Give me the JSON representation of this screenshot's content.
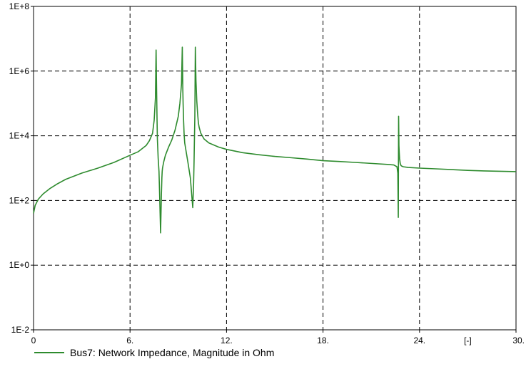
{
  "chart_data": {
    "type": "line",
    "title": "",
    "xlabel": "",
    "ylabel": "",
    "x_unit_label": "[-]",
    "x_ticks": [
      {
        "value": 0,
        "label": "0"
      },
      {
        "value": 6,
        "label": "6."
      },
      {
        "value": 12,
        "label": "12."
      },
      {
        "value": 18,
        "label": "18."
      },
      {
        "value": 24,
        "label": "24."
      },
      {
        "value": 30,
        "label": "30."
      }
    ],
    "y_ticks": [
      {
        "value": 0.01,
        "label": "1E-2"
      },
      {
        "value": 1,
        "label": "1E+0"
      },
      {
        "value": 100,
        "label": "1E+2"
      },
      {
        "value": 10000,
        "label": "1E+4"
      },
      {
        "value": 1000000,
        "label": "1E+6"
      },
      {
        "value": 100000000,
        "label": "1E+8"
      }
    ],
    "xlim": [
      0,
      30
    ],
    "ylim": [
      0.01,
      100000000
    ],
    "y_scale": "log",
    "grid": "dashed",
    "legend_position": "bottom-left",
    "series": [
      {
        "name": "Bus7: Network Impedance, Magnitude in Ohm",
        "color": "#2e8b2e",
        "x": [
          0,
          0.1,
          0.3,
          0.6,
          1.0,
          1.5,
          2.0,
          3.0,
          4.0,
          5.0,
          6.0,
          6.5,
          7.0,
          7.2,
          7.4,
          7.5,
          7.58,
          7.62,
          7.65,
          7.68,
          7.7,
          7.75,
          7.8,
          7.85,
          7.9,
          7.95,
          7.98,
          8.0,
          8.02,
          8.05,
          8.1,
          8.2,
          8.4,
          8.6,
          8.8,
          9.0,
          9.1,
          9.2,
          9.25,
          9.28,
          9.3,
          9.33,
          9.36,
          9.4,
          9.5,
          9.6,
          9.75,
          9.9,
          9.95,
          9.98,
          10.0,
          10.03,
          10.06,
          10.1,
          10.15,
          10.2,
          10.25,
          10.3,
          10.4,
          10.6,
          10.9,
          11.5,
          12.0,
          13.0,
          14.0,
          15.0,
          16.0,
          17.0,
          18.0,
          19.0,
          20.0,
          21.0,
          22.0,
          22.4,
          22.6,
          22.65,
          22.68,
          22.7,
          22.72,
          22.74,
          22.76,
          22.8,
          22.85,
          22.9,
          23.0,
          23.3,
          24.0,
          25.0,
          26.0,
          27.0,
          28.0,
          29.0,
          30.0
        ],
        "values": [
          40,
          70,
          110,
          160,
          230,
          330,
          450,
          700,
          1000,
          1500,
          2500,
          3200,
          5000,
          7000,
          12000,
          30000,
          150000,
          4500000,
          300000,
          30000,
          8000,
          2000,
          800,
          100,
          10,
          150,
          500,
          800,
          1000,
          1200,
          1600,
          2500,
          4500,
          7500,
          15000,
          40000,
          100000,
          400000,
          5500000,
          300000,
          100000,
          30000,
          12000,
          6000,
          3000,
          1500,
          500,
          60,
          300,
          1500,
          6000,
          40000,
          5500000,
          500000,
          120000,
          50000,
          25000,
          18000,
          12000,
          8000,
          6000,
          4500,
          3800,
          3000,
          2600,
          2300,
          2100,
          1900,
          1700,
          1600,
          1500,
          1400,
          1300,
          1250,
          1100,
          700,
          30,
          40000,
          5000,
          3000,
          2000,
          1400,
          1200,
          1150,
          1100,
          1050,
          1000,
          950,
          900,
          850,
          820,
          800,
          780
        ]
      }
    ]
  }
}
